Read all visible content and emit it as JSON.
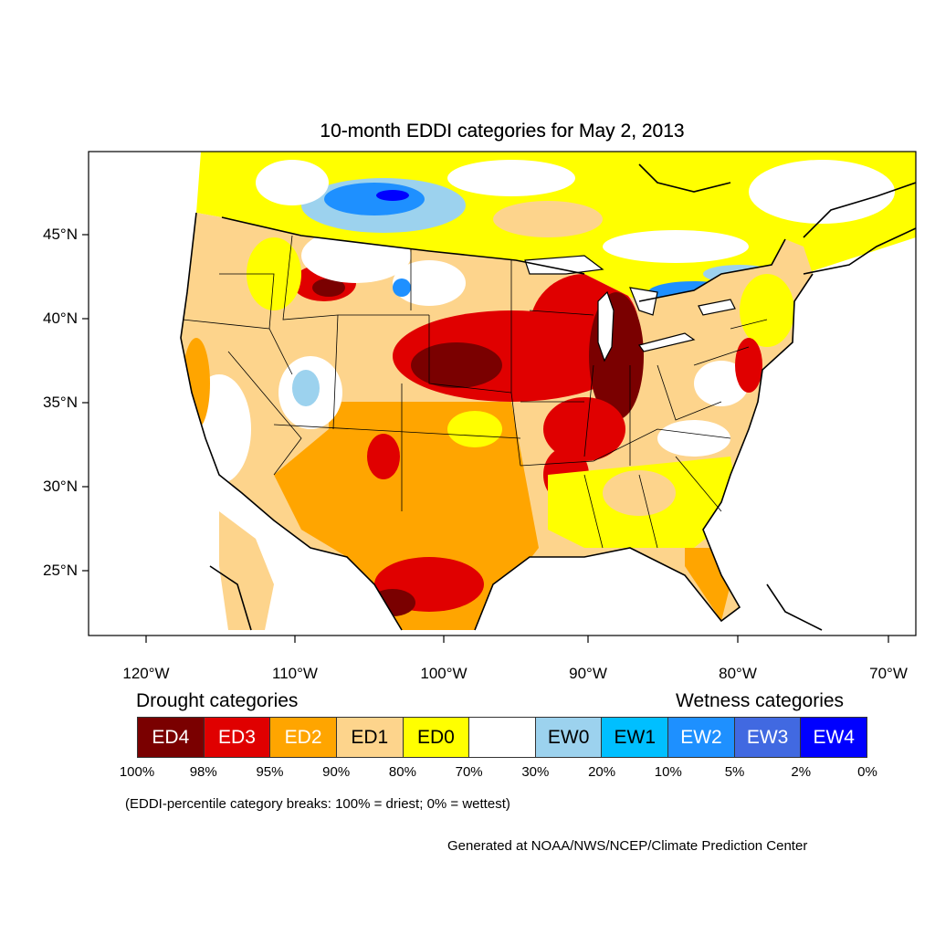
{
  "title": "10-month EDDI categories for May 2, 2013",
  "latitude_labels": [
    "45°N",
    "40°N",
    "35°N",
    "30°N",
    "25°N"
  ],
  "longitude_labels": [
    "120°W",
    "110°W",
    "100°W",
    "90°W",
    "80°W",
    "70°W"
  ],
  "legend": {
    "drought_header": "Drought categories",
    "wetness_header": "Wetness categories",
    "categories": [
      {
        "label": "ED4",
        "color": "#7a0000",
        "text_color": "#ffffff"
      },
      {
        "label": "ED3",
        "color": "#e00000",
        "text_color": "#ffffff"
      },
      {
        "label": "ED2",
        "color": "#ffa500",
        "text_color": "#ffffff"
      },
      {
        "label": "ED1",
        "color": "#fdd48c",
        "text_color": "#000000"
      },
      {
        "label": "ED0",
        "color": "#ffff00",
        "text_color": "#000000"
      },
      {
        "label": "",
        "color": "#ffffff",
        "text_color": "#000000"
      },
      {
        "label": "EW0",
        "color": "#9cd2ee",
        "text_color": "#000000"
      },
      {
        "label": "EW1",
        "color": "#00bfff",
        "text_color": "#000000"
      },
      {
        "label": "EW2",
        "color": "#1e90ff",
        "text_color": "#ffffff"
      },
      {
        "label": "EW3",
        "color": "#4169e1",
        "text_color": "#ffffff"
      },
      {
        "label": "EW4",
        "color": "#0000ff",
        "text_color": "#ffffff"
      }
    ],
    "breaks": [
      "100%",
      "98%",
      "95%",
      "90%",
      "80%",
      "70%",
      "30%",
      "20%",
      "10%",
      "5%",
      "2%",
      "0%"
    ]
  },
  "note": "(EDDI-percentile category breaks: 100% = driest; 0% = wettest)",
  "credit": "Generated at NOAA/NWS/NCEP/Climate Prediction Center"
}
